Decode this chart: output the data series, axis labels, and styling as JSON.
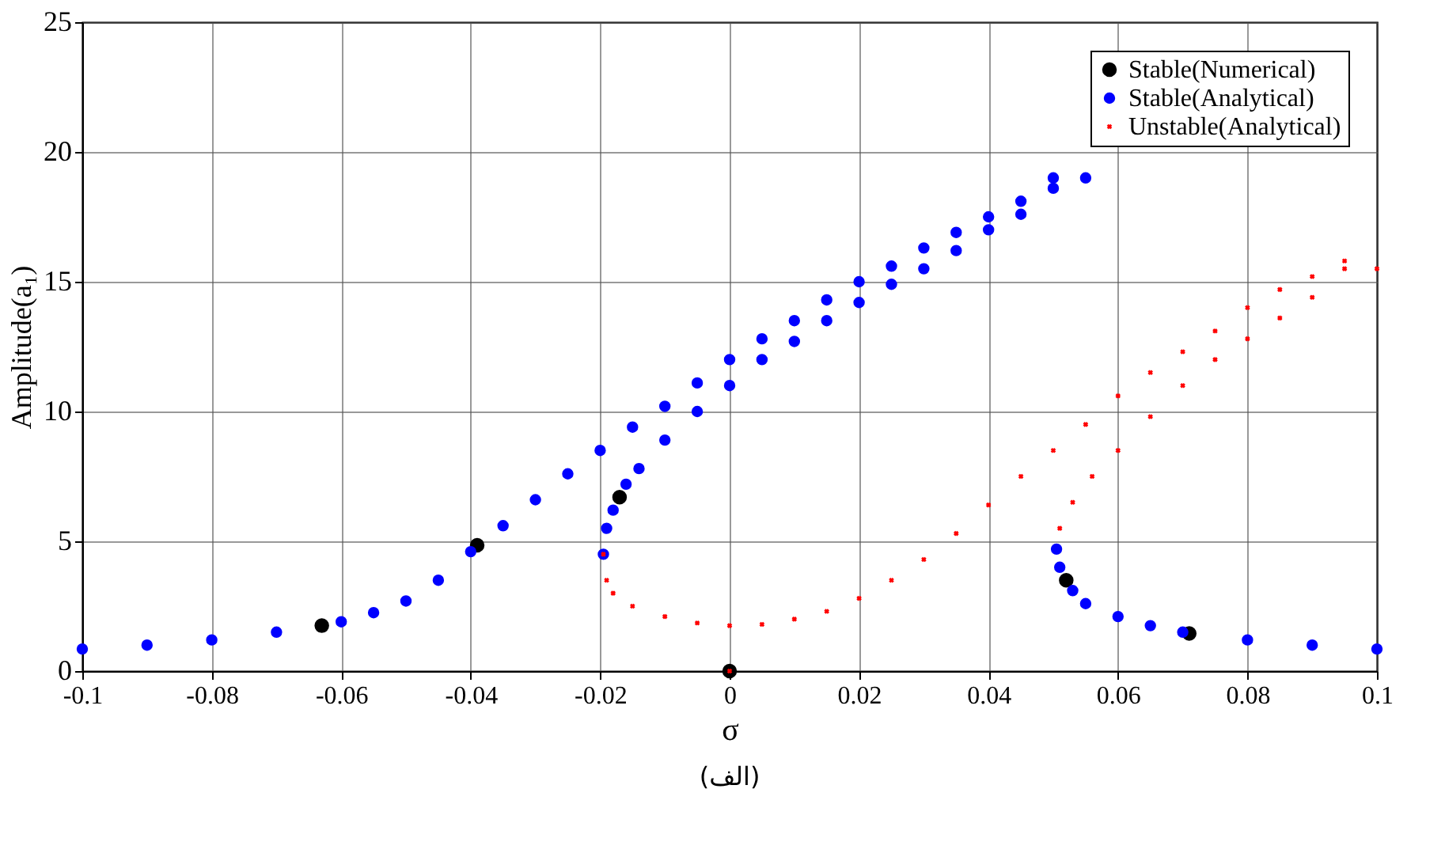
{
  "chart_data": {
    "type": "scatter",
    "xlabel": "σ",
    "ylabel": "Amplitude(a₁)",
    "annotations": [
      "(الف)"
    ],
    "xlim": [
      -0.1,
      0.1
    ],
    "xticks": [
      -0.1,
      -0.08,
      -0.06,
      -0.04,
      -0.02,
      0,
      0.02,
      0.04,
      0.06,
      0.08,
      0.1
    ],
    "ylim": [
      0,
      25
    ],
    "yticks": [
      0,
      5,
      10,
      15,
      20,
      25
    ],
    "grid": true,
    "legend": "top right",
    "series": [
      {
        "name": "Stable(Numerical)",
        "color": "#000000",
        "marker": "circle",
        "x": [
          -0.063,
          -0.039,
          -0.017,
          0,
          0.052,
          0.071
        ],
        "values": [
          1.75,
          4.85,
          6.7,
          0,
          3.5,
          1.45
        ]
      },
      {
        "name": "Stable(Analytical)",
        "color": "#0000ff",
        "marker": "circle",
        "x": [
          -0.1,
          -0.09,
          -0.08,
          -0.07,
          -0.06,
          -0.055,
          -0.05,
          -0.045,
          -0.04,
          -0.035,
          -0.03,
          -0.025,
          -0.02,
          -0.015,
          -0.01,
          -0.005,
          0,
          0.005,
          0.01,
          0.015,
          0.02,
          0.025,
          0.03,
          0.035,
          0.04,
          0.045,
          0.05,
          0.055,
          -0.0195,
          -0.019,
          -0.018,
          -0.016,
          -0.014,
          -0.01,
          -0.005,
          0,
          0.005,
          0.01,
          0.015,
          0.02,
          0.025,
          0.03,
          0.035,
          0.04,
          0.045,
          0.05,
          0.0505,
          0.051,
          0.053,
          0.055,
          0.06,
          0.065,
          0.07,
          0.08,
          0.09,
          0.1
        ],
        "values": [
          0.85,
          1.0,
          1.2,
          1.5,
          1.9,
          2.25,
          2.7,
          3.5,
          4.6,
          5.6,
          6.6,
          7.6,
          8.5,
          9.4,
          10.2,
          11.1,
          12.0,
          12.8,
          13.5,
          14.3,
          15.0,
          15.6,
          16.3,
          16.9,
          17.5,
          18.1,
          18.6,
          19.0,
          4.5,
          5.5,
          6.2,
          7.2,
          7.8,
          8.9,
          10.0,
          11.0,
          12.0,
          12.7,
          13.5,
          14.2,
          14.9,
          15.5,
          16.2,
          17.0,
          17.6,
          19.0,
          4.7,
          4.0,
          3.1,
          2.6,
          2.1,
          1.75,
          1.5,
          1.2,
          1.0,
          0.85
        ]
      },
      {
        "name": "Unstable(Analytical)",
        "color": "#ff0000",
        "marker": "cross",
        "x": [
          -0.0195,
          -0.019,
          -0.018,
          -0.015,
          -0.01,
          -0.005,
          0,
          0.005,
          0.01,
          0.015,
          0.02,
          0.025,
          0.03,
          0.035,
          0.04,
          0.045,
          0.05,
          0.055,
          0.06,
          0.065,
          0.07,
          0.075,
          0.08,
          0.085,
          0.09,
          0.095,
          0.1,
          0.051,
          0.053,
          0.056,
          0.06,
          0.065,
          0.07,
          0.075,
          0.08,
          0.085,
          0.09,
          0.095,
          0
        ],
        "values": [
          4.5,
          3.5,
          3.0,
          2.5,
          2.1,
          1.85,
          1.75,
          1.8,
          2.0,
          2.3,
          2.8,
          3.5,
          4.3,
          5.3,
          6.4,
          7.5,
          8.5,
          9.5,
          10.6,
          11.5,
          12.3,
          13.1,
          14.0,
          14.7,
          15.2,
          15.8,
          15.5,
          5.5,
          6.5,
          7.5,
          8.5,
          9.8,
          11.0,
          12.0,
          12.8,
          13.6,
          14.4,
          15.5,
          0
        ]
      }
    ]
  }
}
